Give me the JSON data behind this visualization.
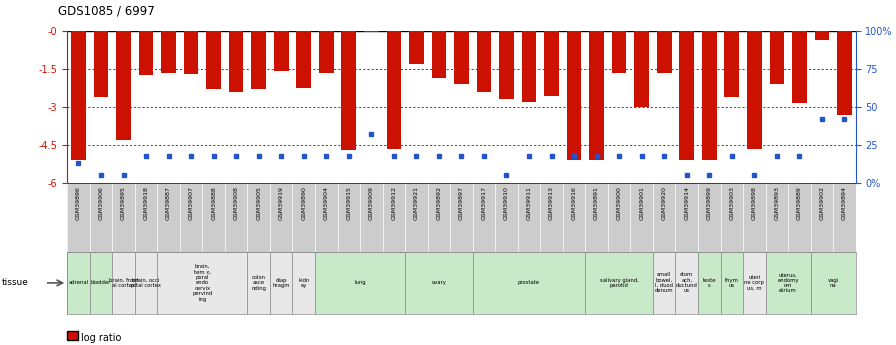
{
  "title": "GDS1085 / 6997",
  "samples": [
    "GSM39896",
    "GSM39906",
    "GSM39895",
    "GSM39918",
    "GSM39887",
    "GSM39907",
    "GSM39888",
    "GSM39908",
    "GSM39905",
    "GSM39919",
    "GSM39890",
    "GSM39904",
    "GSM39915",
    "GSM39909",
    "GSM39912",
    "GSM39921",
    "GSM39892",
    "GSM39897",
    "GSM39917",
    "GSM39910",
    "GSM39911",
    "GSM39913",
    "GSM39916",
    "GSM39891",
    "GSM39900",
    "GSM39901",
    "GSM39920",
    "GSM39914",
    "GSM39899",
    "GSM39903",
    "GSM39898",
    "GSM39893",
    "GSM39889",
    "GSM39902",
    "GSM39894"
  ],
  "log_ratio": [
    -5.1,
    -2.6,
    -4.3,
    -1.75,
    -1.65,
    -1.7,
    -2.3,
    -2.4,
    -2.3,
    -1.57,
    -2.25,
    -1.65,
    -4.7,
    -0.05,
    -4.65,
    -1.3,
    -1.85,
    -2.1,
    -2.4,
    -2.7,
    -2.8,
    -2.55,
    -5.1,
    -5.1,
    -1.65,
    -3.0,
    -1.67,
    -5.1,
    -5.1,
    -2.6,
    -4.65,
    -2.1,
    -2.85,
    -0.35,
    -3.3
  ],
  "percentile_rank_pct": [
    13,
    5,
    5,
    18,
    18,
    18,
    18,
    18,
    18,
    18,
    18,
    18,
    18,
    32,
    18,
    18,
    18,
    18,
    18,
    5,
    18,
    18,
    18,
    18,
    18,
    18,
    18,
    5,
    5,
    18,
    5,
    18,
    18,
    42,
    42
  ],
  "tissues": [
    {
      "label": "adrenal",
      "start": 0,
      "end": 1,
      "color": "#c8eac8"
    },
    {
      "label": "bladder",
      "start": 1,
      "end": 2,
      "color": "#c8eac8"
    },
    {
      "label": "brain, front\nal cortex",
      "start": 2,
      "end": 3,
      "color": "#e8e8e8"
    },
    {
      "label": "brain, occi\npital cortex",
      "start": 3,
      "end": 4,
      "color": "#e8e8e8"
    },
    {
      "label": "brain,\ntem x,\nporal\nendo\ncervix\npervind\ning",
      "start": 4,
      "end": 8,
      "color": "#e8e8e8"
    },
    {
      "label": "colon\nasce\nnding",
      "start": 8,
      "end": 9,
      "color": "#e8e8e8"
    },
    {
      "label": "diap\nhragm",
      "start": 9,
      "end": 10,
      "color": "#e8e8e8"
    },
    {
      "label": "kidn\ney",
      "start": 10,
      "end": 11,
      "color": "#e8e8e8"
    },
    {
      "label": "lung",
      "start": 11,
      "end": 15,
      "color": "#c8eac8"
    },
    {
      "label": "ovary",
      "start": 15,
      "end": 18,
      "color": "#c8eac8"
    },
    {
      "label": "prostate",
      "start": 18,
      "end": 23,
      "color": "#c8eac8"
    },
    {
      "label": "salivary gland,\nparotid",
      "start": 23,
      "end": 26,
      "color": "#c8eac8"
    },
    {
      "label": "small\nbowel,\nI, duod\ndenum",
      "start": 26,
      "end": 27,
      "color": "#e8e8e8"
    },
    {
      "label": "stom\nach,\nductund\nus",
      "start": 27,
      "end": 28,
      "color": "#e8e8e8"
    },
    {
      "label": "teste\ns",
      "start": 28,
      "end": 29,
      "color": "#c8eac8"
    },
    {
      "label": "thym\nus",
      "start": 29,
      "end": 30,
      "color": "#c8eac8"
    },
    {
      "label": "uteri\nne corp\nus, m",
      "start": 30,
      "end": 31,
      "color": "#e8e8e8"
    },
    {
      "label": "uterus,\nendomy\nom\netrium",
      "start": 31,
      "end": 33,
      "color": "#c8eac8"
    },
    {
      "label": "vagi\nna",
      "start": 33,
      "end": 35,
      "color": "#c8eac8"
    }
  ],
  "ylim_min": -6,
  "ylim_max": 0,
  "yticks": [
    0,
    -1.5,
    -3,
    -4.5,
    -6
  ],
  "ytick_labels": [
    "-0",
    "-1.5",
    "-3",
    "-4.5",
    "-6"
  ],
  "right_ytick_pcts": [
    0,
    25,
    50,
    75,
    100
  ],
  "right_ytick_labels": [
    "0%",
    "25",
    "50",
    "75",
    "100%"
  ],
  "bar_color": "#cc1100",
  "dot_color": "#2255cc",
  "bg_color": "#ffffff",
  "axis_color_left": "#cc1100",
  "axis_color_right": "#2255cc",
  "sample_bg": "#cccccc",
  "tissue_border": "#888888"
}
